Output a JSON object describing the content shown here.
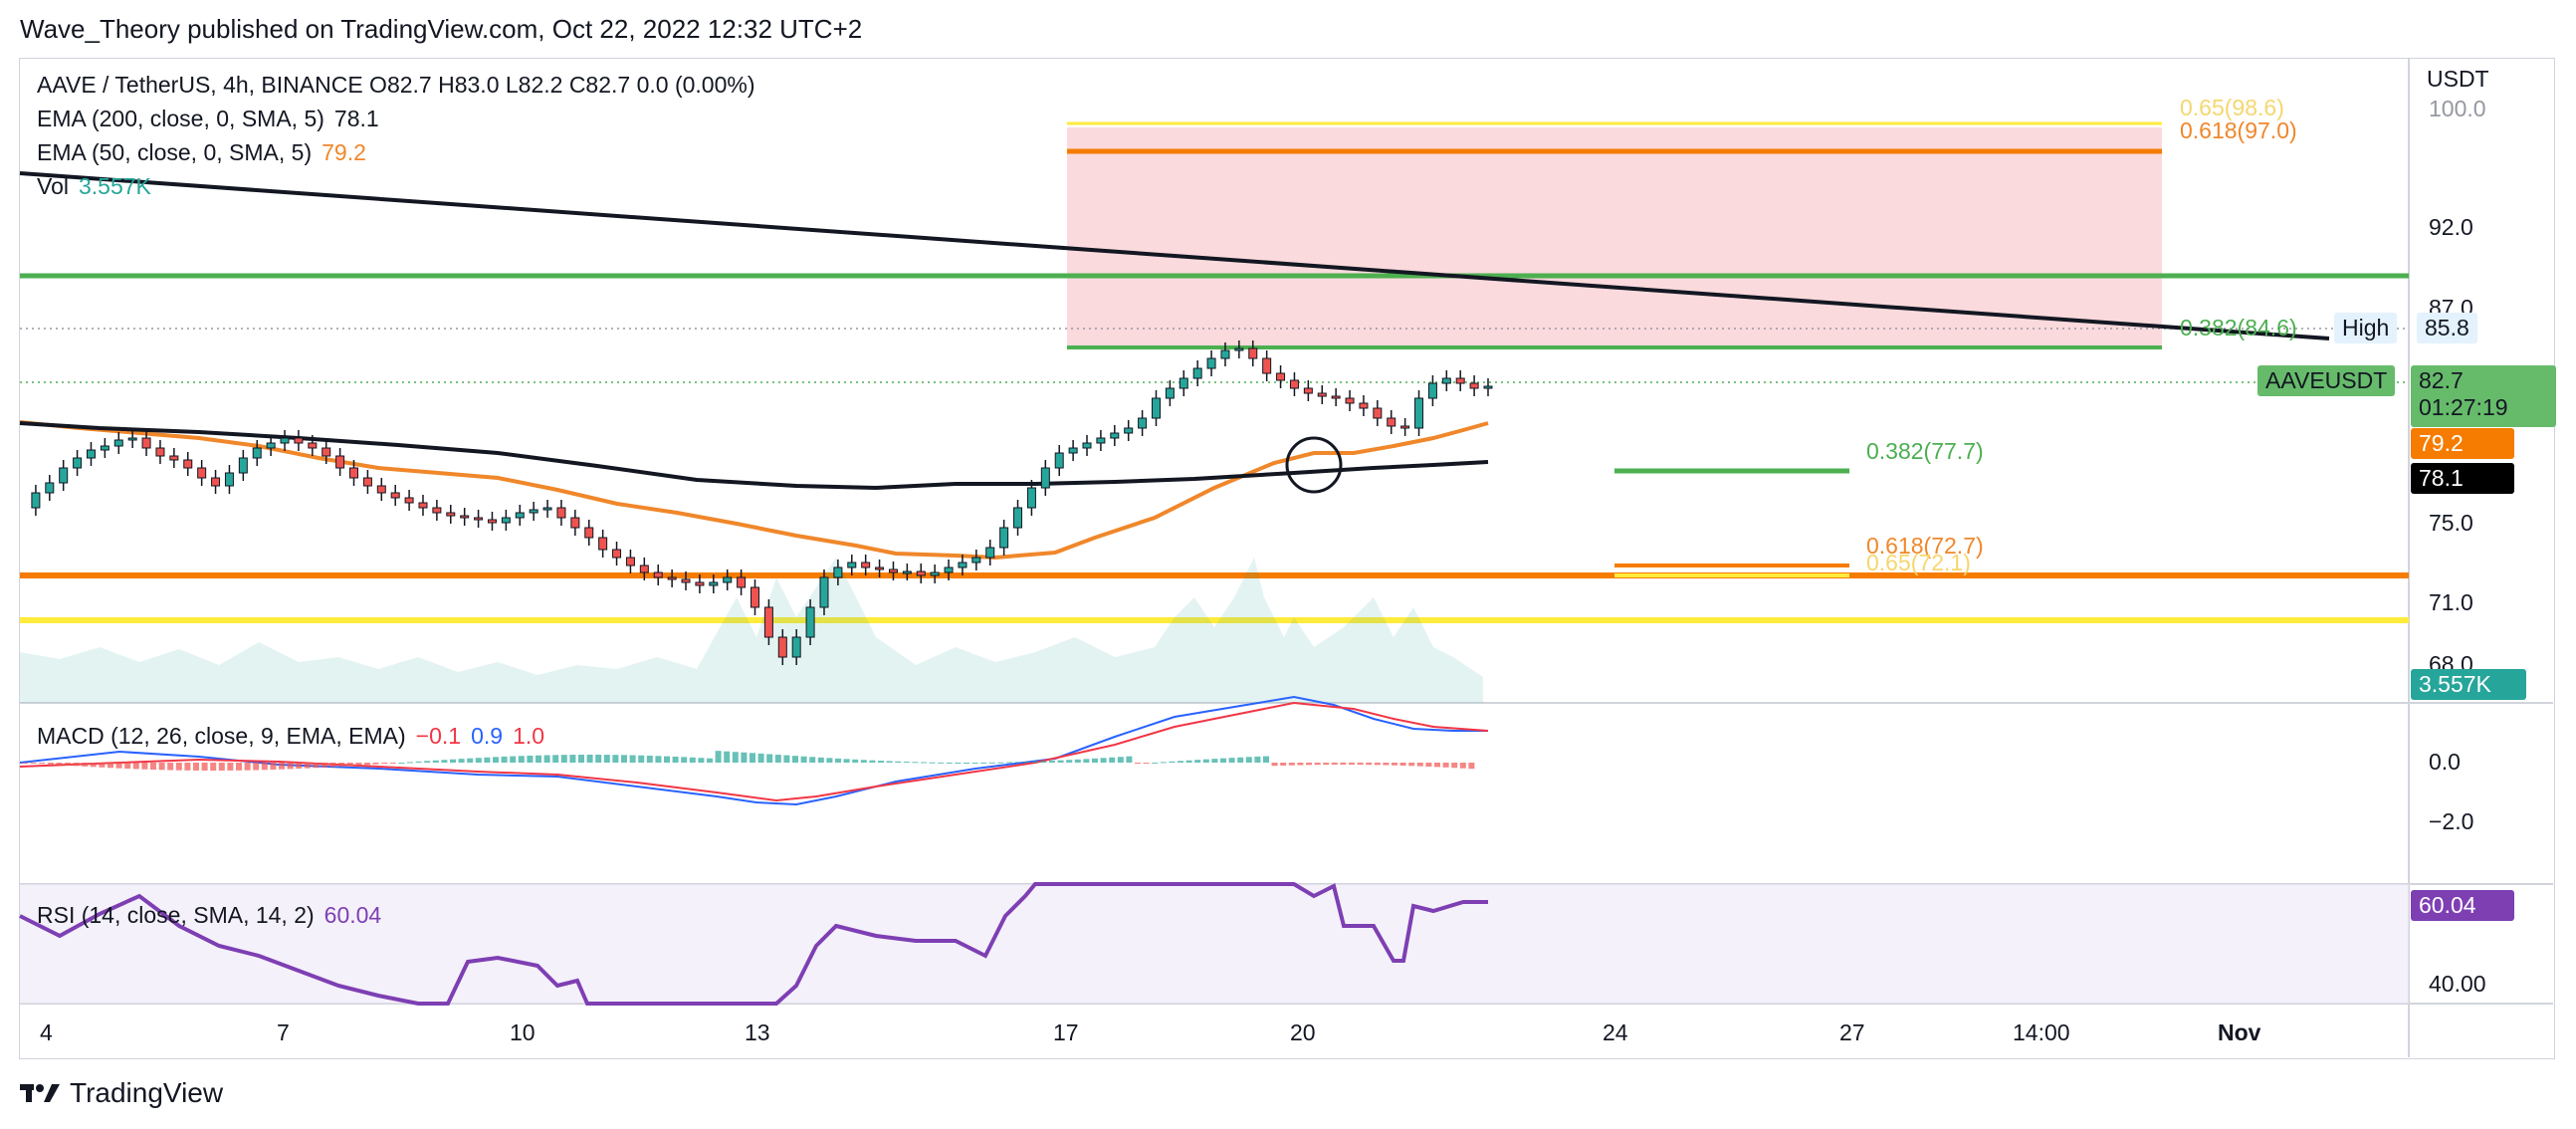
{
  "header": {
    "publisher_line": "Wave_Theory published on TradingView.com, Oct 22, 2022 12:32 UTC+2"
  },
  "legend": {
    "symbol_line": "AAVE / TetherUS, 4h, BINANCE  O82.7  H83.0  L82.2  C82.7  0.0 (0.00%)",
    "ema200_label": "EMA (200, close, 0, SMA, 5)",
    "ema200_value": "78.1",
    "ema50_label": "EMA (50, close, 0, SMA, 5)",
    "ema50_value": "79.2",
    "vol_label": "Vol",
    "vol_value": "3.557K",
    "macd_label": "MACD (12, 26, close, 9, EMA, EMA)",
    "macd_hist": "−0.1",
    "macd_line": "0.9",
    "macd_signal": "1.0",
    "rsi_label": "RSI (14, close, SMA, 14, 2)",
    "rsi_value": "60.04"
  },
  "price_axis": {
    "currency": "USDT",
    "labels": [
      "100.0",
      "92.0",
      "87.0",
      "75.0",
      "71.0",
      "68.0"
    ],
    "macd_labels": [
      "0.0",
      "−2.0"
    ],
    "rsi_labels": [
      "40.00"
    ]
  },
  "price_tags": {
    "high_label": "High",
    "high_value": "85.8",
    "symbol": "AAVEUSDT",
    "last_price": "82.7",
    "countdown": "01:27:19",
    "ema50": "79.2",
    "ema200": "78.1",
    "volume": "3.557K",
    "rsi": "60.04"
  },
  "fib_labels": {
    "f065_top": "0.65(98.6)",
    "f0618_top": "0.618(97.0)",
    "f0382_top": "0.382(84.6)",
    "f0382_low": "0.382(77.7)",
    "f0618_low": "0.618(72.7)",
    "f065_low": "0.65(72.1)"
  },
  "time_axis": {
    "labels": [
      "4",
      "7",
      "10",
      "13",
      "17",
      "20",
      "24",
      "27",
      "14:00",
      "Nov"
    ]
  },
  "footer": {
    "brand": "TradingView"
  },
  "colors": {
    "up": "#26a69a",
    "down": "#ef5350",
    "ema50": "#f0872a",
    "ema200": "#131722",
    "green_line": "#4caf50",
    "orange_line": "#f57c00",
    "yellow_line": "#ffeb3b",
    "zone": "#fadadd",
    "rsi_line": "#7e3fb3",
    "macd_line": "#2962ff",
    "signal_line": "#f23645"
  }
}
